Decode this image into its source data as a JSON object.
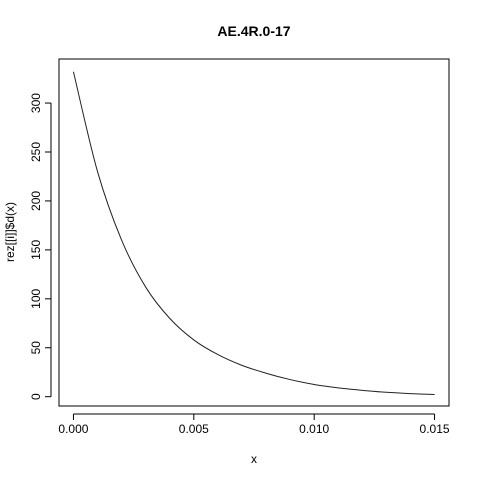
{
  "chart_data": {
    "type": "line",
    "title": "AE.4R.0-17",
    "xlabel": "x",
    "ylabel": "rez[[i]]$d(x)",
    "xlim": [
      -0.0006,
      0.0156
    ],
    "ylim": [
      -9.5,
      345
    ],
    "xticks": [
      0.0,
      0.005,
      0.01,
      0.015
    ],
    "xtick_labels": [
      "0.000",
      "0.005",
      "0.010",
      "0.015"
    ],
    "yticks": [
      0,
      50,
      100,
      150,
      200,
      250,
      300
    ],
    "ytick_labels": [
      "0",
      "50",
      "100",
      "150",
      "200",
      "250",
      "300"
    ],
    "grid": false,
    "legend": "none",
    "series": [
      {
        "x": [
          0.0,
          0.001,
          0.002,
          0.003,
          0.004,
          0.005,
          0.006,
          0.007,
          0.008,
          0.009,
          0.01,
          0.011,
          0.012,
          0.013,
          0.014,
          0.015
        ],
        "y": [
          332,
          230,
          160,
          112,
          80,
          58,
          43,
          32,
          24,
          17.5,
          12.5,
          9,
          6.5,
          4.5,
          3.2,
          2.2
        ]
      }
    ]
  }
}
